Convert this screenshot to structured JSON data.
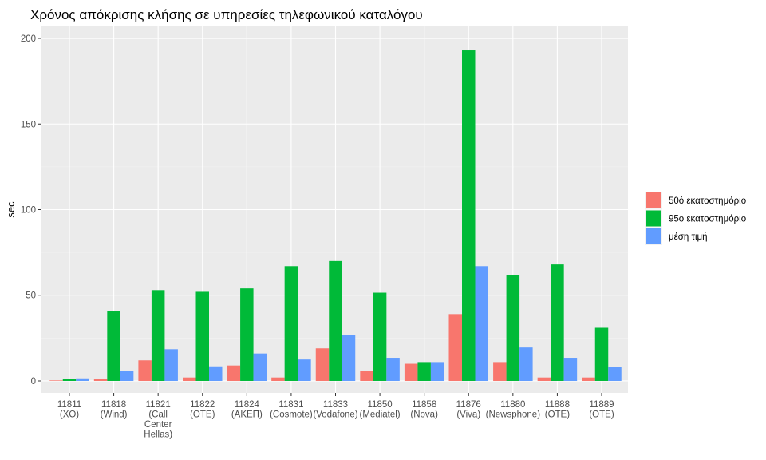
{
  "chart_data": {
    "type": "bar",
    "title": "Χρόνος απόκρισης κλήσης σε υπηρεσίες τηλεφωνικού καταλόγου",
    "xlabel": "",
    "ylabel": "sec",
    "ylim": [
      -7,
      207
    ],
    "yticks": [
      0,
      50,
      100,
      150,
      200
    ],
    "grid": true,
    "legend_position": "right",
    "categories": [
      [
        "11811",
        "(XO)"
      ],
      [
        "11818",
        "(Wind)"
      ],
      [
        "11821",
        "(Call",
        "Center",
        "Hellas)"
      ],
      [
        "11822",
        "(OTE)"
      ],
      [
        "11824",
        "(ΑΚΕΠ)"
      ],
      [
        "11831",
        "(Cosmote)"
      ],
      [
        "11833",
        "(Vodafone)"
      ],
      [
        "11850",
        "(Mediatel)"
      ],
      [
        "11858",
        "(Nova)"
      ],
      [
        "11876",
        "(Viva)"
      ],
      [
        "11880",
        "(Newsphone)"
      ],
      [
        "11888",
        "(OTE)"
      ],
      [
        "11889",
        "(OTE)"
      ]
    ],
    "series": [
      {
        "name": "50ό εκατοστημόριο",
        "color": "#F8766D",
        "values": [
          0.3,
          1,
          12,
          2,
          9,
          2,
          19,
          6,
          10,
          39,
          11,
          2,
          2
        ]
      },
      {
        "name": "95ο εκατοστημόριο",
        "color": "#00BA38",
        "values": [
          1,
          41,
          53,
          52,
          54,
          67,
          70,
          51.5,
          11,
          193,
          62,
          68,
          31
        ]
      },
      {
        "name": "μέση τιμή",
        "color": "#619CFF",
        "values": [
          1.5,
          6,
          18.5,
          8.5,
          16,
          12.5,
          27,
          13.5,
          11,
          67,
          19.5,
          13.5,
          8
        ]
      }
    ]
  }
}
